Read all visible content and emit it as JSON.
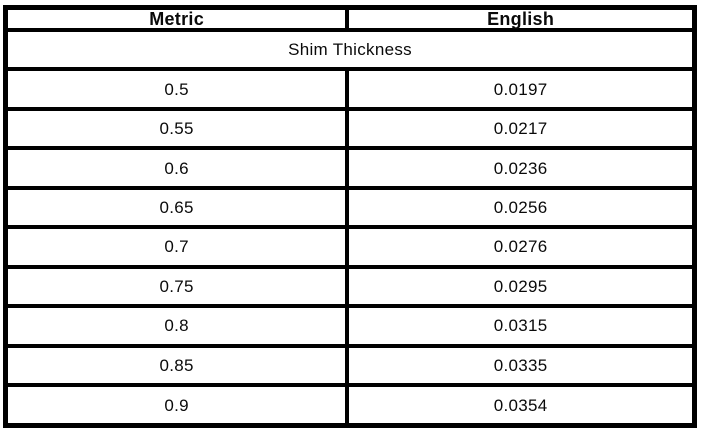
{
  "table": {
    "headers": {
      "metric": "Metric",
      "english": "English"
    },
    "section_title": "Shim Thickness",
    "rows": [
      {
        "metric": "0.5",
        "english": "0.0197"
      },
      {
        "metric": "0.55",
        "english": "0.0217"
      },
      {
        "metric": "0.6",
        "english": "0.0236"
      },
      {
        "metric": "0.65",
        "english": "0.0256"
      },
      {
        "metric": "0.7",
        "english": "0.0276"
      },
      {
        "metric": "0.75",
        "english": "0.0295"
      },
      {
        "metric": "0.8",
        "english": "0.0315"
      },
      {
        "metric": "0.85",
        "english": "0.0335"
      },
      {
        "metric": "0.9",
        "english": "0.0354"
      }
    ]
  },
  "colors": {
    "border": "#000000",
    "text": "#0a0a0a",
    "background": "#ffffff"
  }
}
